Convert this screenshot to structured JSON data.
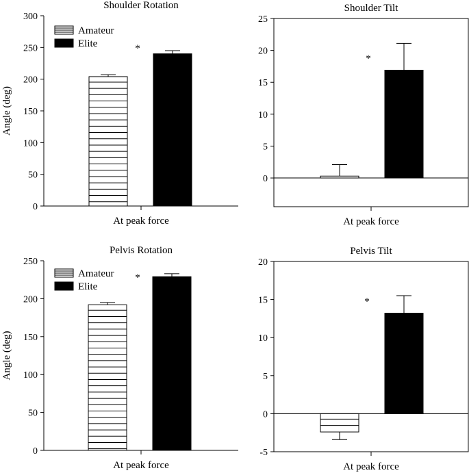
{
  "figure": {
    "ylabel_shared": "Angle (deg)"
  },
  "colors": {
    "amateur_fill": "#ffffff",
    "amateur_stripe": "#000000",
    "elite_fill": "#000000",
    "axis": "#000000"
  },
  "chart_data": [
    {
      "type": "bar",
      "title": "Shoulder Rotation",
      "xlabel": "At peak force",
      "ylabel": "Angle (deg)",
      "ylim": [
        0,
        300
      ],
      "yticks": [
        0,
        50,
        100,
        150,
        200,
        250,
        300
      ],
      "categories": [
        "At peak force"
      ],
      "series": [
        {
          "name": "Amateur",
          "values": [
            204
          ],
          "error": [
            3
          ]
        },
        {
          "name": "Elite",
          "values": [
            240
          ],
          "error": [
            5
          ]
        }
      ],
      "legend": [
        "Amateur",
        "Elite"
      ],
      "legend_position": "top-left",
      "annotation": "*"
    },
    {
      "type": "bar",
      "title": "Shoulder Tilt",
      "xlabel": "At peak force",
      "ylabel": "",
      "ylim": [
        -4.5,
        25
      ],
      "yticks": [
        0,
        5,
        10,
        15,
        20,
        25
      ],
      "categories": [
        "At peak force"
      ],
      "series": [
        {
          "name": "Amateur",
          "values": [
            0.3
          ],
          "error": [
            1.8
          ]
        },
        {
          "name": "Elite",
          "values": [
            16.9
          ],
          "error": [
            4.2
          ]
        }
      ],
      "annotation": "*"
    },
    {
      "type": "bar",
      "title": "Pelvis Rotation",
      "xlabel": "At peak force",
      "ylabel": "Angle (deg)",
      "ylim": [
        0,
        250
      ],
      "yticks": [
        0,
        50,
        100,
        150,
        200,
        250
      ],
      "categories": [
        "At peak force"
      ],
      "series": [
        {
          "name": "Amateur",
          "values": [
            192
          ],
          "error": [
            3
          ]
        },
        {
          "name": "Elite",
          "values": [
            229
          ],
          "error": [
            4
          ]
        }
      ],
      "legend": [
        "Amateur",
        "Elite"
      ],
      "legend_position": "top-left",
      "annotation": "*"
    },
    {
      "type": "bar",
      "title": "Pelvis Tilt",
      "xlabel": "At peak force",
      "ylabel": "",
      "ylim": [
        -5,
        20
      ],
      "yticks": [
        -5,
        0,
        5,
        10,
        15,
        20
      ],
      "categories": [
        "At peak force"
      ],
      "series": [
        {
          "name": "Amateur",
          "values": [
            -2.4
          ],
          "error": [
            1.0
          ]
        },
        {
          "name": "Elite",
          "values": [
            13.2
          ],
          "error": [
            2.3
          ]
        }
      ],
      "annotation": "*"
    }
  ]
}
